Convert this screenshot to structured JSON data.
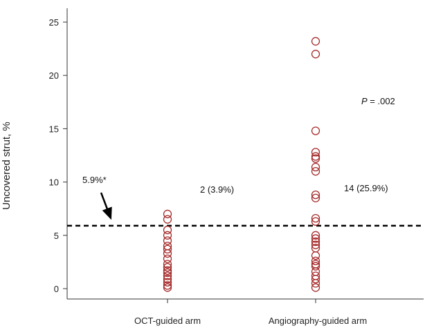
{
  "chart_data": {
    "type": "scatter",
    "title": "",
    "ylabel": "Uncovered strut, %",
    "xlabel": "",
    "ylim": [
      -1,
      26.5
    ],
    "yticks": [
      0,
      5,
      10,
      15,
      20,
      25
    ],
    "grid": false,
    "categories": [
      "OCT-guided arm",
      "Angiography-guided arm"
    ],
    "marker_color": "#a52a2a",
    "series": [
      {
        "category": "OCT-guided arm",
        "values": [
          7.0,
          6.5,
          5.5,
          5.0,
          4.5,
          4.0,
          3.7,
          3.3,
          2.8,
          2.3,
          2.0,
          1.7,
          1.5,
          1.2,
          0.9,
          0.6,
          0.3,
          0.1
        ]
      },
      {
        "category": "Angiography-guided arm",
        "values": [
          23.2,
          22.0,
          14.8,
          12.8,
          12.4,
          12.2,
          11.4,
          11.0,
          8.8,
          8.5,
          6.6,
          6.3,
          5.0,
          4.7,
          4.4,
          4.1,
          3.8,
          3.1,
          2.6,
          2.3,
          2.1,
          1.6,
          1.2,
          0.9,
          0.5,
          0.1
        ]
      }
    ],
    "reference_line": {
      "value": 5.9,
      "style": "dashed"
    },
    "annotations": {
      "threshold_label": "5.9%*",
      "oct_count": "2 (3.9%)",
      "angio_count": "14 (25.9%)",
      "p_label": "P",
      "p_value": " = .002"
    }
  }
}
